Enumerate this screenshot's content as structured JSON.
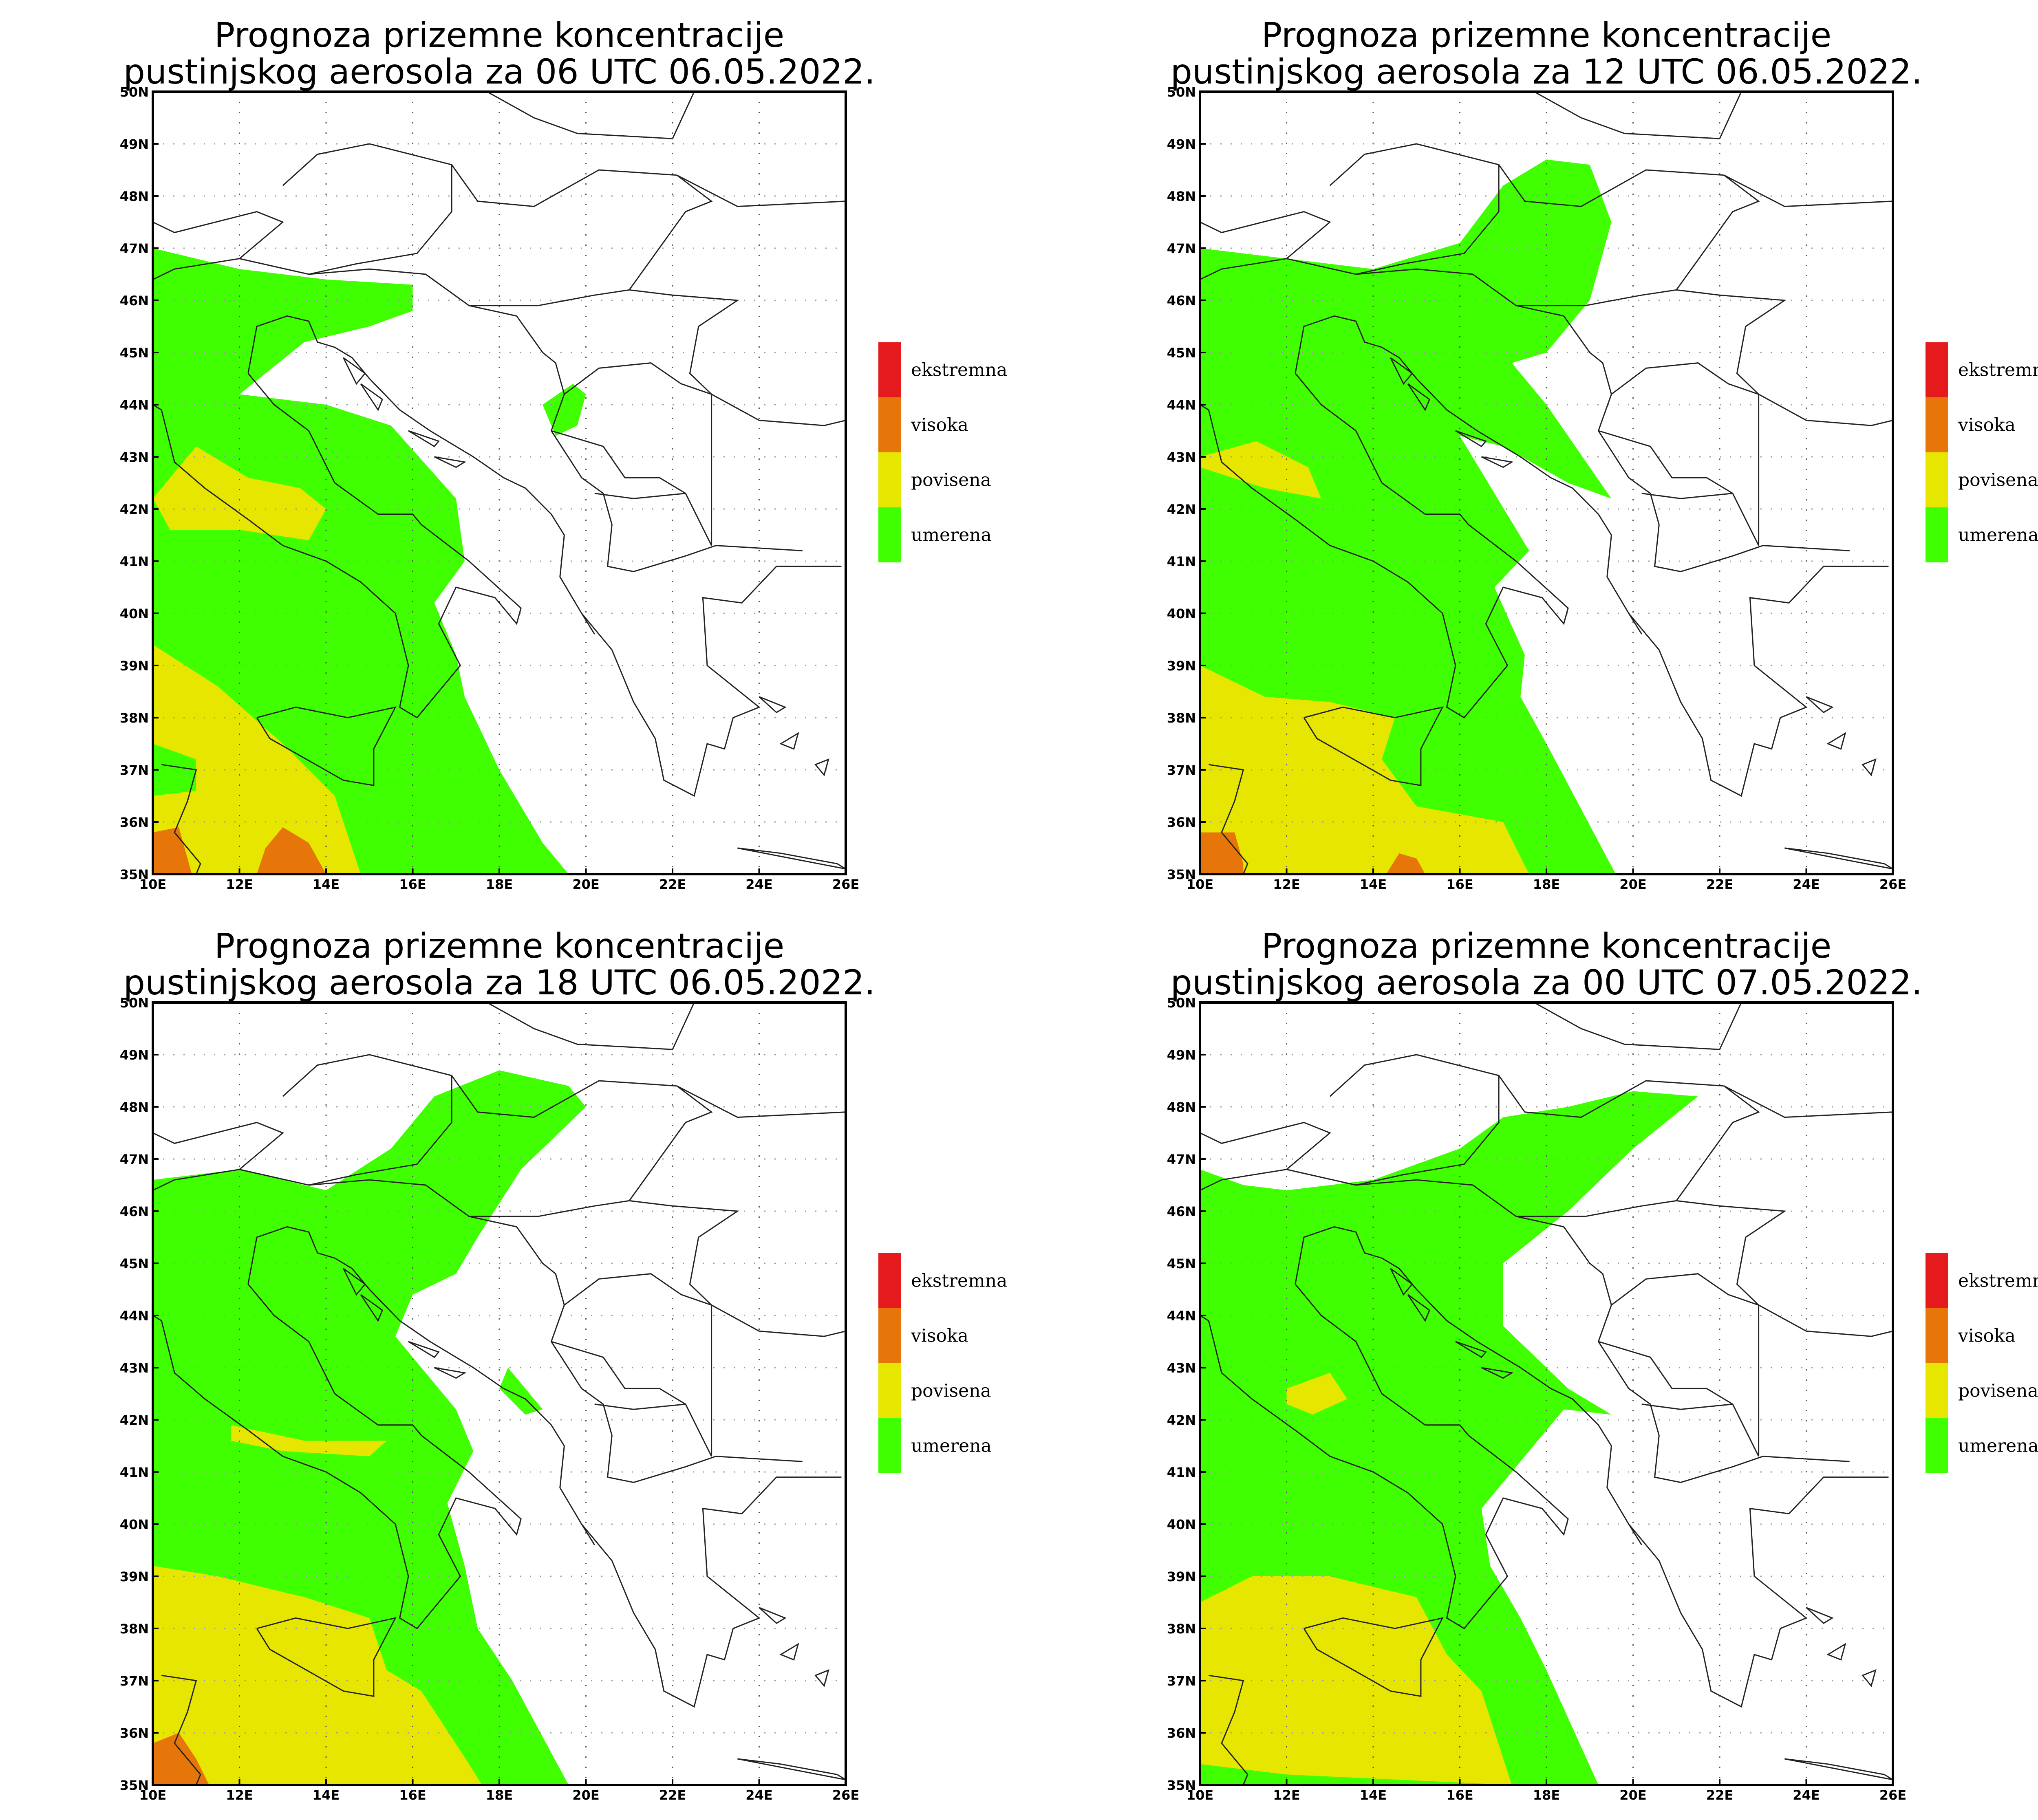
{
  "panels": [
    {
      "title_line1": "Prognoza prizemne koncentracije",
      "title_line2": "pustinjskog aerosola za 06 UTC 06.05.2022.",
      "fields": [
        {
          "level": "umerena",
          "lonlat": [
            [
              10,
              47
            ],
            [
              11,
              46.8
            ],
            [
              12,
              46.6
            ],
            [
              13,
              46.5
            ],
            [
              14,
              46.4
            ],
            [
              16,
              46.3
            ],
            [
              16,
              45.8
            ],
            [
              15,
              45.5
            ],
            [
              13.5,
              45.2
            ],
            [
              12,
              44.2
            ],
            [
              14,
              44
            ],
            [
              15.5,
              43.6
            ],
            [
              17,
              42.2
            ],
            [
              17.2,
              41
            ],
            [
              16.5,
              40.2
            ],
            [
              17,
              39.2
            ],
            [
              17.2,
              38.4
            ],
            [
              18,
              37
            ],
            [
              19,
              35.6
            ],
            [
              19.6,
              35
            ],
            [
              10,
              35
            ]
          ]
        },
        {
          "level": "umerena",
          "lonlat": [
            [
              19,
              44
            ],
            [
              19.7,
              44.4
            ],
            [
              20,
              44.2
            ],
            [
              19.8,
              43.6
            ],
            [
              19.3,
              43.4
            ]
          ]
        },
        {
          "level": "povisena",
          "lonlat": [
            [
              10,
              42.2
            ],
            [
              11,
              43.2
            ],
            [
              12.2,
              42.6
            ],
            [
              13.4,
              42.4
            ],
            [
              14,
              42
            ],
            [
              13.6,
              41.4
            ],
            [
              12,
              41.6
            ],
            [
              10.4,
              41.6
            ]
          ]
        },
        {
          "level": "povisena",
          "lonlat": [
            [
              10,
              39.4
            ],
            [
              11.5,
              38.6
            ],
            [
              13,
              37.5
            ],
            [
              14.2,
              36.5
            ],
            [
              14.8,
              35
            ],
            [
              10,
              35
            ]
          ]
        },
        {
          "level": "visoka",
          "lonlat": [
            [
              10,
              35.8
            ],
            [
              10.6,
              35.9
            ],
            [
              10.8,
              35.3
            ],
            [
              10.9,
              35
            ],
            [
              10,
              35
            ]
          ]
        },
        {
          "level": "visoka",
          "lonlat": [
            [
              12.4,
              35
            ],
            [
              12.6,
              35.5
            ],
            [
              13,
              35.9
            ],
            [
              13.6,
              35.6
            ],
            [
              14,
              35
            ]
          ]
        },
        {
          "level": "umerena",
          "lonlat": [
            [
              10,
              37.5
            ],
            [
              11,
              37.2
            ],
            [
              11,
              36.6
            ],
            [
              10,
              36.5
            ]
          ]
        }
      ]
    },
    {
      "title_line1": "Prognoza prizemne koncentracije",
      "title_line2": "pustinjskog aerosola za 12 UTC 06.05.2022.",
      "fields": [
        {
          "level": "umerena",
          "lonlat": [
            [
              10,
              47
            ],
            [
              12,
              46.8
            ],
            [
              14,
              46.6
            ],
            [
              16,
              47.1
            ],
            [
              17,
              48.2
            ],
            [
              18,
              48.7
            ],
            [
              19,
              48.6
            ],
            [
              19.5,
              47.5
            ],
            [
              19,
              46
            ],
            [
              18,
              45
            ],
            [
              17.2,
              44.8
            ],
            [
              18,
              44
            ],
            [
              19.5,
              42.2
            ],
            [
              18.5,
              42.5
            ],
            [
              17,
              43.2
            ],
            [
              16,
              43.4
            ],
            [
              17.6,
              41.2
            ],
            [
              16.8,
              40.5
            ],
            [
              17.5,
              39.2
            ],
            [
              17.4,
              38.4
            ],
            [
              18,
              37.5
            ],
            [
              19.6,
              35
            ],
            [
              10,
              35
            ]
          ]
        },
        {
          "level": "povisena",
          "lonlat": [
            [
              10,
              43
            ],
            [
              11.3,
              43.3
            ],
            [
              12.5,
              42.8
            ],
            [
              12.8,
              42.2
            ],
            [
              11.5,
              42.4
            ],
            [
              10,
              42.8
            ]
          ]
        },
        {
          "level": "povisena",
          "lonlat": [
            [
              10,
              39
            ],
            [
              11.5,
              38.4
            ],
            [
              13,
              38.3
            ],
            [
              14.5,
              38
            ],
            [
              14.2,
              37.2
            ],
            [
              15,
              36.3
            ],
            [
              17,
              36
            ],
            [
              17.6,
              35
            ],
            [
              10,
              35
            ]
          ]
        },
        {
          "level": "visoka",
          "lonlat": [
            [
              10,
              35.8
            ],
            [
              10.8,
              35.8
            ],
            [
              11,
              35.2
            ],
            [
              11,
              35
            ],
            [
              10,
              35
            ]
          ]
        },
        {
          "level": "visoka",
          "lonlat": [
            [
              14.3,
              35
            ],
            [
              14.6,
              35.4
            ],
            [
              15,
              35.3
            ],
            [
              15.2,
              35
            ]
          ]
        }
      ]
    },
    {
      "title_line1": "Prognoza prizemne koncentracije",
      "title_line2": "pustinjskog aerosola za 18 UTC 06.05.2022.",
      "fields": [
        {
          "level": "umerena",
          "lonlat": [
            [
              10,
              46.6
            ],
            [
              12,
              46.8
            ],
            [
              14,
              46.4
            ],
            [
              15.5,
              47.2
            ],
            [
              16.5,
              48.2
            ],
            [
              18,
              48.7
            ],
            [
              19.6,
              48.4
            ],
            [
              20,
              48
            ],
            [
              18.5,
              46.8
            ],
            [
              17.5,
              45.5
            ],
            [
              17,
              44.8
            ],
            [
              16,
              44.4
            ],
            [
              15.6,
              43.6
            ],
            [
              16.5,
              42.7
            ],
            [
              17,
              42.2
            ],
            [
              17.4,
              41.4
            ],
            [
              16.8,
              40.4
            ],
            [
              17.2,
              39.2
            ],
            [
              17.5,
              38
            ],
            [
              18.3,
              37
            ],
            [
              19.6,
              35
            ],
            [
              10,
              35
            ]
          ]
        },
        {
          "level": "umerena",
          "lonlat": [
            [
              18.2,
              43
            ],
            [
              19,
              42.2
            ],
            [
              18.6,
              42.1
            ],
            [
              18,
              42.6
            ]
          ]
        },
        {
          "level": "povisena",
          "lonlat": [
            [
              11.8,
              41.9
            ],
            [
              13.5,
              41.6
            ],
            [
              15.4,
              41.6
            ],
            [
              15,
              41.3
            ],
            [
              13,
              41.4
            ],
            [
              11.8,
              41.6
            ]
          ]
        },
        {
          "level": "povisena",
          "lonlat": [
            [
              10,
              39.2
            ],
            [
              11.5,
              39
            ],
            [
              13.5,
              38.6
            ],
            [
              15,
              38.2
            ],
            [
              15.4,
              37.2
            ],
            [
              16.2,
              36.8
            ],
            [
              17.3,
              35.4
            ],
            [
              17.6,
              35
            ],
            [
              10,
              35
            ]
          ]
        },
        {
          "level": "visoka",
          "lonlat": [
            [
              10,
              35.8
            ],
            [
              10.6,
              36
            ],
            [
              11,
              35.5
            ],
            [
              11.3,
              35
            ],
            [
              10,
              35
            ]
          ]
        }
      ]
    },
    {
      "title_line1": "Prognoza prizemne koncentracije",
      "title_line2": "pustinjskog aerosola za 00 UTC 07.05.2022.",
      "fields": [
        {
          "level": "umerena",
          "lonlat": [
            [
              10,
              46.8
            ],
            [
              11,
              46.5
            ],
            [
              12,
              46.4
            ],
            [
              14,
              46.6
            ],
            [
              16,
              47.2
            ],
            [
              17,
              47.8
            ],
            [
              18.5,
              48
            ],
            [
              20,
              48.3
            ],
            [
              21.5,
              48.2
            ],
            [
              20,
              47.2
            ],
            [
              18.5,
              46
            ],
            [
              17,
              45
            ],
            [
              17,
              43.8
            ],
            [
              18.5,
              42.6
            ],
            [
              19.5,
              42.1
            ],
            [
              18.4,
              42.2
            ],
            [
              17.2,
              41
            ],
            [
              16.5,
              40.3
            ],
            [
              16.7,
              39.2
            ],
            [
              17.4,
              38.2
            ],
            [
              18,
              37.2
            ],
            [
              19.2,
              35
            ],
            [
              10,
              35
            ]
          ]
        },
        {
          "level": "povisena",
          "lonlat": [
            [
              12,
              42.6
            ],
            [
              13,
              42.9
            ],
            [
              13.4,
              42.4
            ],
            [
              12.6,
              42.1
            ],
            [
              12,
              42.3
            ]
          ]
        },
        {
          "level": "povisena",
          "lonlat": [
            [
              10,
              38.5
            ],
            [
              11.2,
              39
            ],
            [
              13,
              39
            ],
            [
              15,
              38.6
            ],
            [
              15.7,
              37.5
            ],
            [
              16.5,
              36.8
            ],
            [
              17.2,
              35
            ],
            [
              12,
              35.2
            ],
            [
              10,
              35.4
            ]
          ]
        }
      ]
    }
  ],
  "axes": {
    "lon_ticks": [
      "10E",
      "12E",
      "14E",
      "16E",
      "18E",
      "20E",
      "22E",
      "24E",
      "26E"
    ],
    "lat_ticks": [
      "35N",
      "36N",
      "37N",
      "38N",
      "39N",
      "40N",
      "41N",
      "42N",
      "43N",
      "44N",
      "45N",
      "46N",
      "47N",
      "48N",
      "49N",
      "50N"
    ],
    "lon_range": [
      10,
      26
    ],
    "lat_range": [
      35,
      50
    ]
  },
  "legend": {
    "items": [
      {
        "label": "ekstremna",
        "color": "#e41a1c"
      },
      {
        "label": "visoka",
        "color": "#e6760a"
      },
      {
        "label": "povisena",
        "color": "#e6e600"
      },
      {
        "label": "umerena",
        "color": "#3fff00"
      }
    ]
  },
  "colors": {
    "umerena": "#3fff00",
    "povisena": "#e6e600",
    "visoka": "#e6760a",
    "ekstremna": "#e41a1c"
  }
}
